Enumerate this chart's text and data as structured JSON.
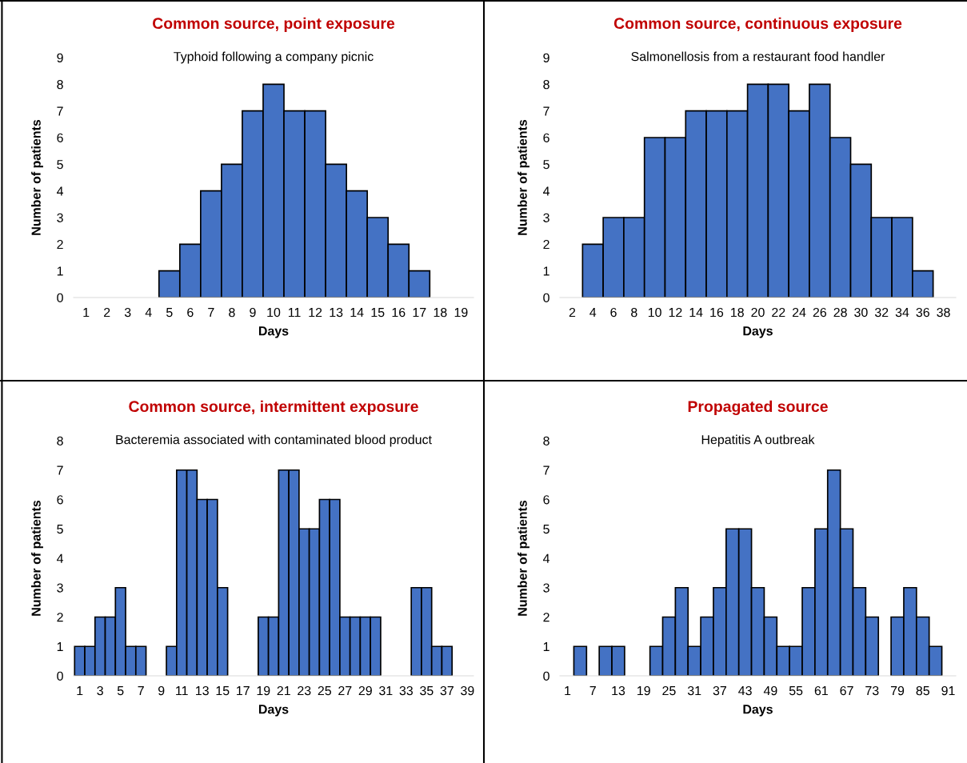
{
  "chart_data": [
    {
      "type": "bar",
      "title": "Common source, point exposure",
      "subtitle": "Typhoid following a company picnic",
      "xlabel": "Days",
      "ylabel": "Number of patients",
      "categories": [
        "1",
        "2",
        "3",
        "4",
        "5",
        "6",
        "7",
        "8",
        "9",
        "10",
        "11",
        "12",
        "13",
        "14",
        "15",
        "16",
        "17",
        "18",
        "19"
      ],
      "values": [
        null,
        null,
        null,
        null,
        1,
        2,
        4,
        5,
        7,
        8,
        7,
        7,
        5,
        4,
        3,
        2,
        1,
        null,
        null
      ],
      "color": "#4472c4",
      "ylim": [
        0,
        9
      ],
      "yticks": [
        0,
        1,
        2,
        3,
        4,
        5,
        6,
        7,
        8,
        9
      ]
    },
    {
      "type": "bar",
      "title": "Common source, continuous exposure",
      "subtitle": "Salmonellosis from a restaurant food handler",
      "xlabel": "Days",
      "ylabel": "Number of patients",
      "categories": [
        "2",
        "4",
        "6",
        "8",
        "10",
        "12",
        "14",
        "16",
        "18",
        "20",
        "22",
        "24",
        "26",
        "28",
        "30",
        "32",
        "34",
        "36",
        "38"
      ],
      "values": [
        null,
        2,
        3,
        3,
        6,
        6,
        7,
        7,
        7,
        8,
        8,
        7,
        8,
        6,
        5,
        3,
        3,
        1,
        null
      ],
      "color": "#4472c4",
      "ylim": [
        0,
        9
      ],
      "yticks": [
        0,
        1,
        2,
        3,
        4,
        5,
        6,
        7,
        8,
        9
      ]
    },
    {
      "type": "bar",
      "title": "Common source, intermittent exposure",
      "subtitle": "Bacteremia associated with contaminated blood product",
      "xlabel": "Days",
      "ylabel": "Number of patients",
      "categories": [
        "1",
        null,
        "3",
        null,
        "5",
        null,
        "7",
        null,
        "9",
        null,
        "11",
        null,
        "13",
        null,
        "15",
        null,
        "17",
        null,
        "19",
        null,
        "21",
        null,
        "23",
        null,
        "25",
        null,
        "27",
        null,
        "29",
        null,
        "31",
        null,
        "33",
        null,
        "35",
        null,
        "37",
        null,
        "39"
      ],
      "values": [
        1,
        1,
        2,
        2,
        3,
        1,
        1,
        null,
        null,
        1,
        7,
        7,
        6,
        6,
        3,
        null,
        null,
        null,
        2,
        2,
        7,
        7,
        5,
        5,
        6,
        6,
        2,
        2,
        2,
        2,
        null,
        null,
        null,
        3,
        3,
        1,
        1,
        null,
        null
      ],
      "color": "#4472c4",
      "ylim": [
        0,
        8
      ],
      "yticks": [
        0,
        1,
        2,
        3,
        4,
        5,
        6,
        7,
        8
      ]
    },
    {
      "type": "bar",
      "title": "Propagated source",
      "subtitle": "Hepatitis A outbreak",
      "xlabel": "Days",
      "ylabel": "Number of patients",
      "categories": [
        "1",
        null,
        "7",
        null,
        "13",
        null,
        "19",
        null,
        "25",
        null,
        "31",
        null,
        "37",
        null,
        "43",
        null,
        "49",
        null,
        "55",
        null,
        "61",
        null,
        "67",
        null,
        "73",
        null,
        "79",
        null,
        "85",
        null,
        "91"
      ],
      "values": [
        null,
        1,
        null,
        1,
        1,
        null,
        null,
        1,
        2,
        3,
        1,
        2,
        3,
        5,
        5,
        3,
        2,
        1,
        1,
        3,
        5,
        7,
        5,
        3,
        2,
        null,
        2,
        3,
        2,
        1,
        null
      ],
      "color": "#4472c4",
      "ylim": [
        0,
        8
      ],
      "yticks": [
        0,
        1,
        2,
        3,
        4,
        5,
        6,
        7,
        8
      ]
    }
  ]
}
